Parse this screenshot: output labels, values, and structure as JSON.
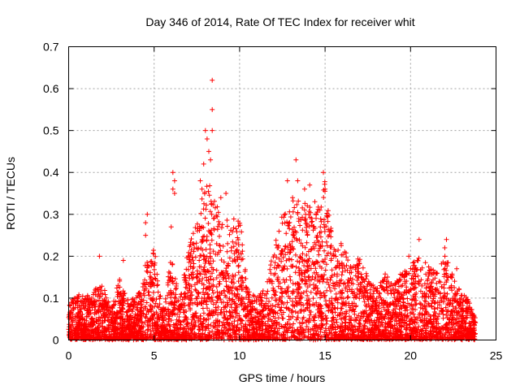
{
  "chart_data": {
    "type": "scatter",
    "title": "Day 346 of 2014, Rate Of TEC Index for receiver whit",
    "xlabel": "GPS time / hours",
    "ylabel": "ROTI / TECUs",
    "xlim": [
      0,
      25
    ],
    "ylim": [
      0,
      0.7
    ],
    "x_ticks": [
      0,
      5,
      10,
      15,
      20,
      25
    ],
    "y_ticks": [
      0,
      0.1,
      0.2,
      0.3,
      0.4,
      0.5,
      0.6,
      0.7
    ],
    "x_tick_labels": [
      "0",
      "5",
      "10",
      "15",
      "20",
      "25"
    ],
    "y_tick_labels": [
      "0",
      "0.1",
      "0.2",
      "0.3",
      "0.4",
      "0.5",
      "0.6",
      "0.7"
    ],
    "grid": true,
    "marker": "+",
    "color": "#ff0000",
    "envelope": {
      "x": [
        0.0,
        0.5,
        1.0,
        1.5,
        2.0,
        2.5,
        3.0,
        3.5,
        4.0,
        4.5,
        5.0,
        5.5,
        6.0,
        6.5,
        7.0,
        7.5,
        8.0,
        8.5,
        9.0,
        9.5,
        10.0,
        10.5,
        11.0,
        11.5,
        12.0,
        12.5,
        13.0,
        13.5,
        14.0,
        14.5,
        15.0,
        15.5,
        16.0,
        16.5,
        17.0,
        17.5,
        18.0,
        18.5,
        19.0,
        19.5,
        20.0,
        20.5,
        21.0,
        21.5,
        22.0,
        22.5,
        23.0,
        23.5,
        23.8
      ],
      "y": [
        0.08,
        0.11,
        0.1,
        0.12,
        0.13,
        0.08,
        0.15,
        0.09,
        0.1,
        0.18,
        0.22,
        0.07,
        0.2,
        0.09,
        0.22,
        0.28,
        0.38,
        0.35,
        0.28,
        0.3,
        0.3,
        0.12,
        0.1,
        0.12,
        0.22,
        0.3,
        0.34,
        0.33,
        0.32,
        0.3,
        0.38,
        0.22,
        0.24,
        0.18,
        0.2,
        0.15,
        0.12,
        0.16,
        0.13,
        0.16,
        0.18,
        0.2,
        0.18,
        0.16,
        0.2,
        0.16,
        0.11,
        0.09,
        0.06
      ]
    },
    "highlight_points": [
      {
        "x": 4.6,
        "y": 0.3
      },
      {
        "x": 4.5,
        "y": 0.28
      },
      {
        "x": 4.5,
        "y": 0.25
      },
      {
        "x": 6.1,
        "y": 0.4
      },
      {
        "x": 6.2,
        "y": 0.38
      },
      {
        "x": 6.1,
        "y": 0.36
      },
      {
        "x": 6.2,
        "y": 0.35
      },
      {
        "x": 6.0,
        "y": 0.27
      },
      {
        "x": 7.7,
        "y": 0.38
      },
      {
        "x": 7.8,
        "y": 0.36
      },
      {
        "x": 7.9,
        "y": 0.42
      },
      {
        "x": 8.0,
        "y": 0.5
      },
      {
        "x": 8.1,
        "y": 0.48
      },
      {
        "x": 8.2,
        "y": 0.45
      },
      {
        "x": 8.3,
        "y": 0.43
      },
      {
        "x": 8.4,
        "y": 0.5
      },
      {
        "x": 8.4,
        "y": 0.62
      },
      {
        "x": 8.4,
        "y": 0.55
      },
      {
        "x": 8.9,
        "y": 0.34
      },
      {
        "x": 9.2,
        "y": 0.35
      },
      {
        "x": 12.8,
        "y": 0.38
      },
      {
        "x": 13.1,
        "y": 0.34
      },
      {
        "x": 13.3,
        "y": 0.43
      },
      {
        "x": 13.4,
        "y": 0.38
      },
      {
        "x": 13.8,
        "y": 0.36
      },
      {
        "x": 14.1,
        "y": 0.37
      },
      {
        "x": 14.4,
        "y": 0.33
      },
      {
        "x": 14.9,
        "y": 0.4
      },
      {
        "x": 15.0,
        "y": 0.36
      },
      {
        "x": 19.9,
        "y": 0.2
      },
      {
        "x": 20.5,
        "y": 0.24
      },
      {
        "x": 22.1,
        "y": 0.24
      },
      {
        "x": 22.0,
        "y": 0.22
      },
      {
        "x": 22.7,
        "y": 0.17
      },
      {
        "x": 1.8,
        "y": 0.2
      },
      {
        "x": 3.2,
        "y": 0.19
      }
    ],
    "point_count": 5000,
    "random_seed": 346
  }
}
